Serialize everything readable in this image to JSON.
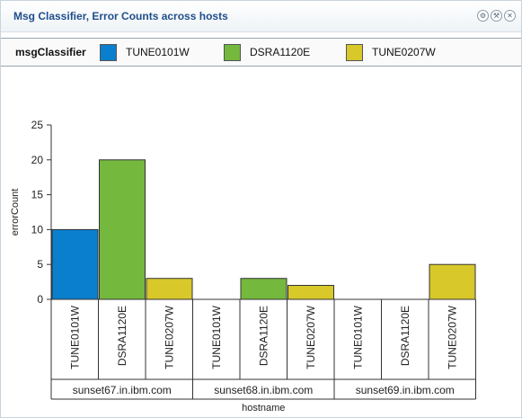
{
  "panel": {
    "title": "Msg Classifier, Error Counts across hosts",
    "tools": [
      {
        "name": "settings-icon",
        "glyph": "⚙"
      },
      {
        "name": "wrench-icon",
        "glyph": "⚒"
      },
      {
        "name": "close-icon",
        "glyph": "✕"
      }
    ]
  },
  "legend": {
    "title": "msgClassifier",
    "items": [
      {
        "label": "TUNE0101W",
        "color": "#0a7fcd"
      },
      {
        "label": "DSRA1120E",
        "color": "#74b83e"
      },
      {
        "label": "TUNE0207W",
        "color": "#d8c82a"
      }
    ]
  },
  "chart_data": {
    "type": "bar",
    "title": "",
    "xlabel": "hostname",
    "ylabel": "errorCount",
    "ylim": [
      0,
      25
    ],
    "yticks": [
      0,
      5,
      10,
      15,
      20,
      25
    ],
    "grid": false,
    "legend_position": "top",
    "groups": [
      "sunset67.in.ibm.com",
      "sunset68.in.ibm.com",
      "sunset69.in.ibm.com"
    ],
    "categories": [
      "TUNE0101W",
      "DSRA1120E",
      "TUNE0207W"
    ],
    "series": [
      {
        "name": "TUNE0101W",
        "color": "#0a7fcd",
        "values": [
          10,
          0,
          0
        ]
      },
      {
        "name": "DSRA1120E",
        "color": "#74b83e",
        "values": [
          20,
          3,
          0
        ]
      },
      {
        "name": "TUNE0207W",
        "color": "#d8c82a",
        "values": [
          3,
          2,
          5
        ]
      }
    ]
  }
}
